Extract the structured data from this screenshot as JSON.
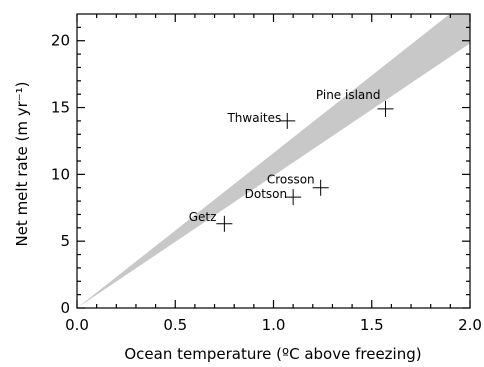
{
  "chart_data": {
    "type": "scatter",
    "xlabel": "Ocean temperature (ºC above freezing)",
    "ylabel": "Net melt rate (m yr⁻¹)",
    "xlim": [
      0.0,
      2.0
    ],
    "ylim": [
      0,
      22
    ],
    "xticks": [
      "0.0",
      "0.5",
      "1.0",
      "1.5",
      "2.0"
    ],
    "xtick_values": [
      0.0,
      0.5,
      1.0,
      1.5,
      2.0
    ],
    "yticks": [
      "0",
      "5",
      "10",
      "15",
      "20"
    ],
    "ytick_values": [
      0,
      5,
      10,
      15,
      20
    ],
    "grid": false,
    "band": {
      "color": "#c8c8c8",
      "lower": [
        [
          0.0,
          0.0
        ],
        [
          2.0,
          19.8
        ]
      ],
      "upper": [
        [
          0.0,
          0.0
        ],
        [
          2.0,
          23.2
        ]
      ]
    },
    "points": [
      {
        "label": "Getz",
        "x": 0.75,
        "y": 6.3
      },
      {
        "label": "Dotson",
        "x": 1.1,
        "y": 8.3
      },
      {
        "label": "Crosson",
        "x": 1.24,
        "y": 9.0
      },
      {
        "label": "Thwaites",
        "x": 1.07,
        "y": 14.0
      },
      {
        "label": "Pine island",
        "x": 1.57,
        "y": 14.9
      }
    ]
  }
}
